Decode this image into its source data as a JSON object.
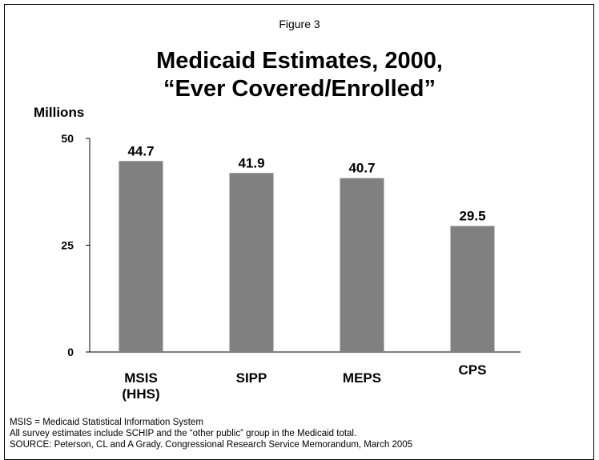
{
  "figure_label": "Figure 3",
  "chart_data": {
    "type": "bar",
    "title_lines": [
      "Medicaid Estimates, 2000,",
      "“Ever Covered/Enrolled”"
    ],
    "ylabel": "Millions",
    "xlabel": "",
    "ylim": [
      0,
      50
    ],
    "yticks": [
      0,
      25,
      50
    ],
    "grid": false,
    "categories": [
      [
        "MSIS",
        "(HHS)"
      ],
      [
        "SIPP"
      ],
      [
        "MEPS"
      ],
      [
        "CPS"
      ]
    ],
    "values": [
      44.7,
      41.9,
      40.7,
      29.5
    ],
    "value_labels": [
      "44.7",
      "41.9",
      "40.7",
      "29.5"
    ],
    "colors": {
      "bar": "#808080",
      "axis": "#000000"
    }
  },
  "notes": [
    "MSIS = Medicaid Statistical Information System",
    "All survey estimates include SCHIP and the “other public” group in the Medicaid total.",
    "SOURCE: Peterson, CL and A Grady.  Congressional Research Service Memorandum, March 2005"
  ]
}
